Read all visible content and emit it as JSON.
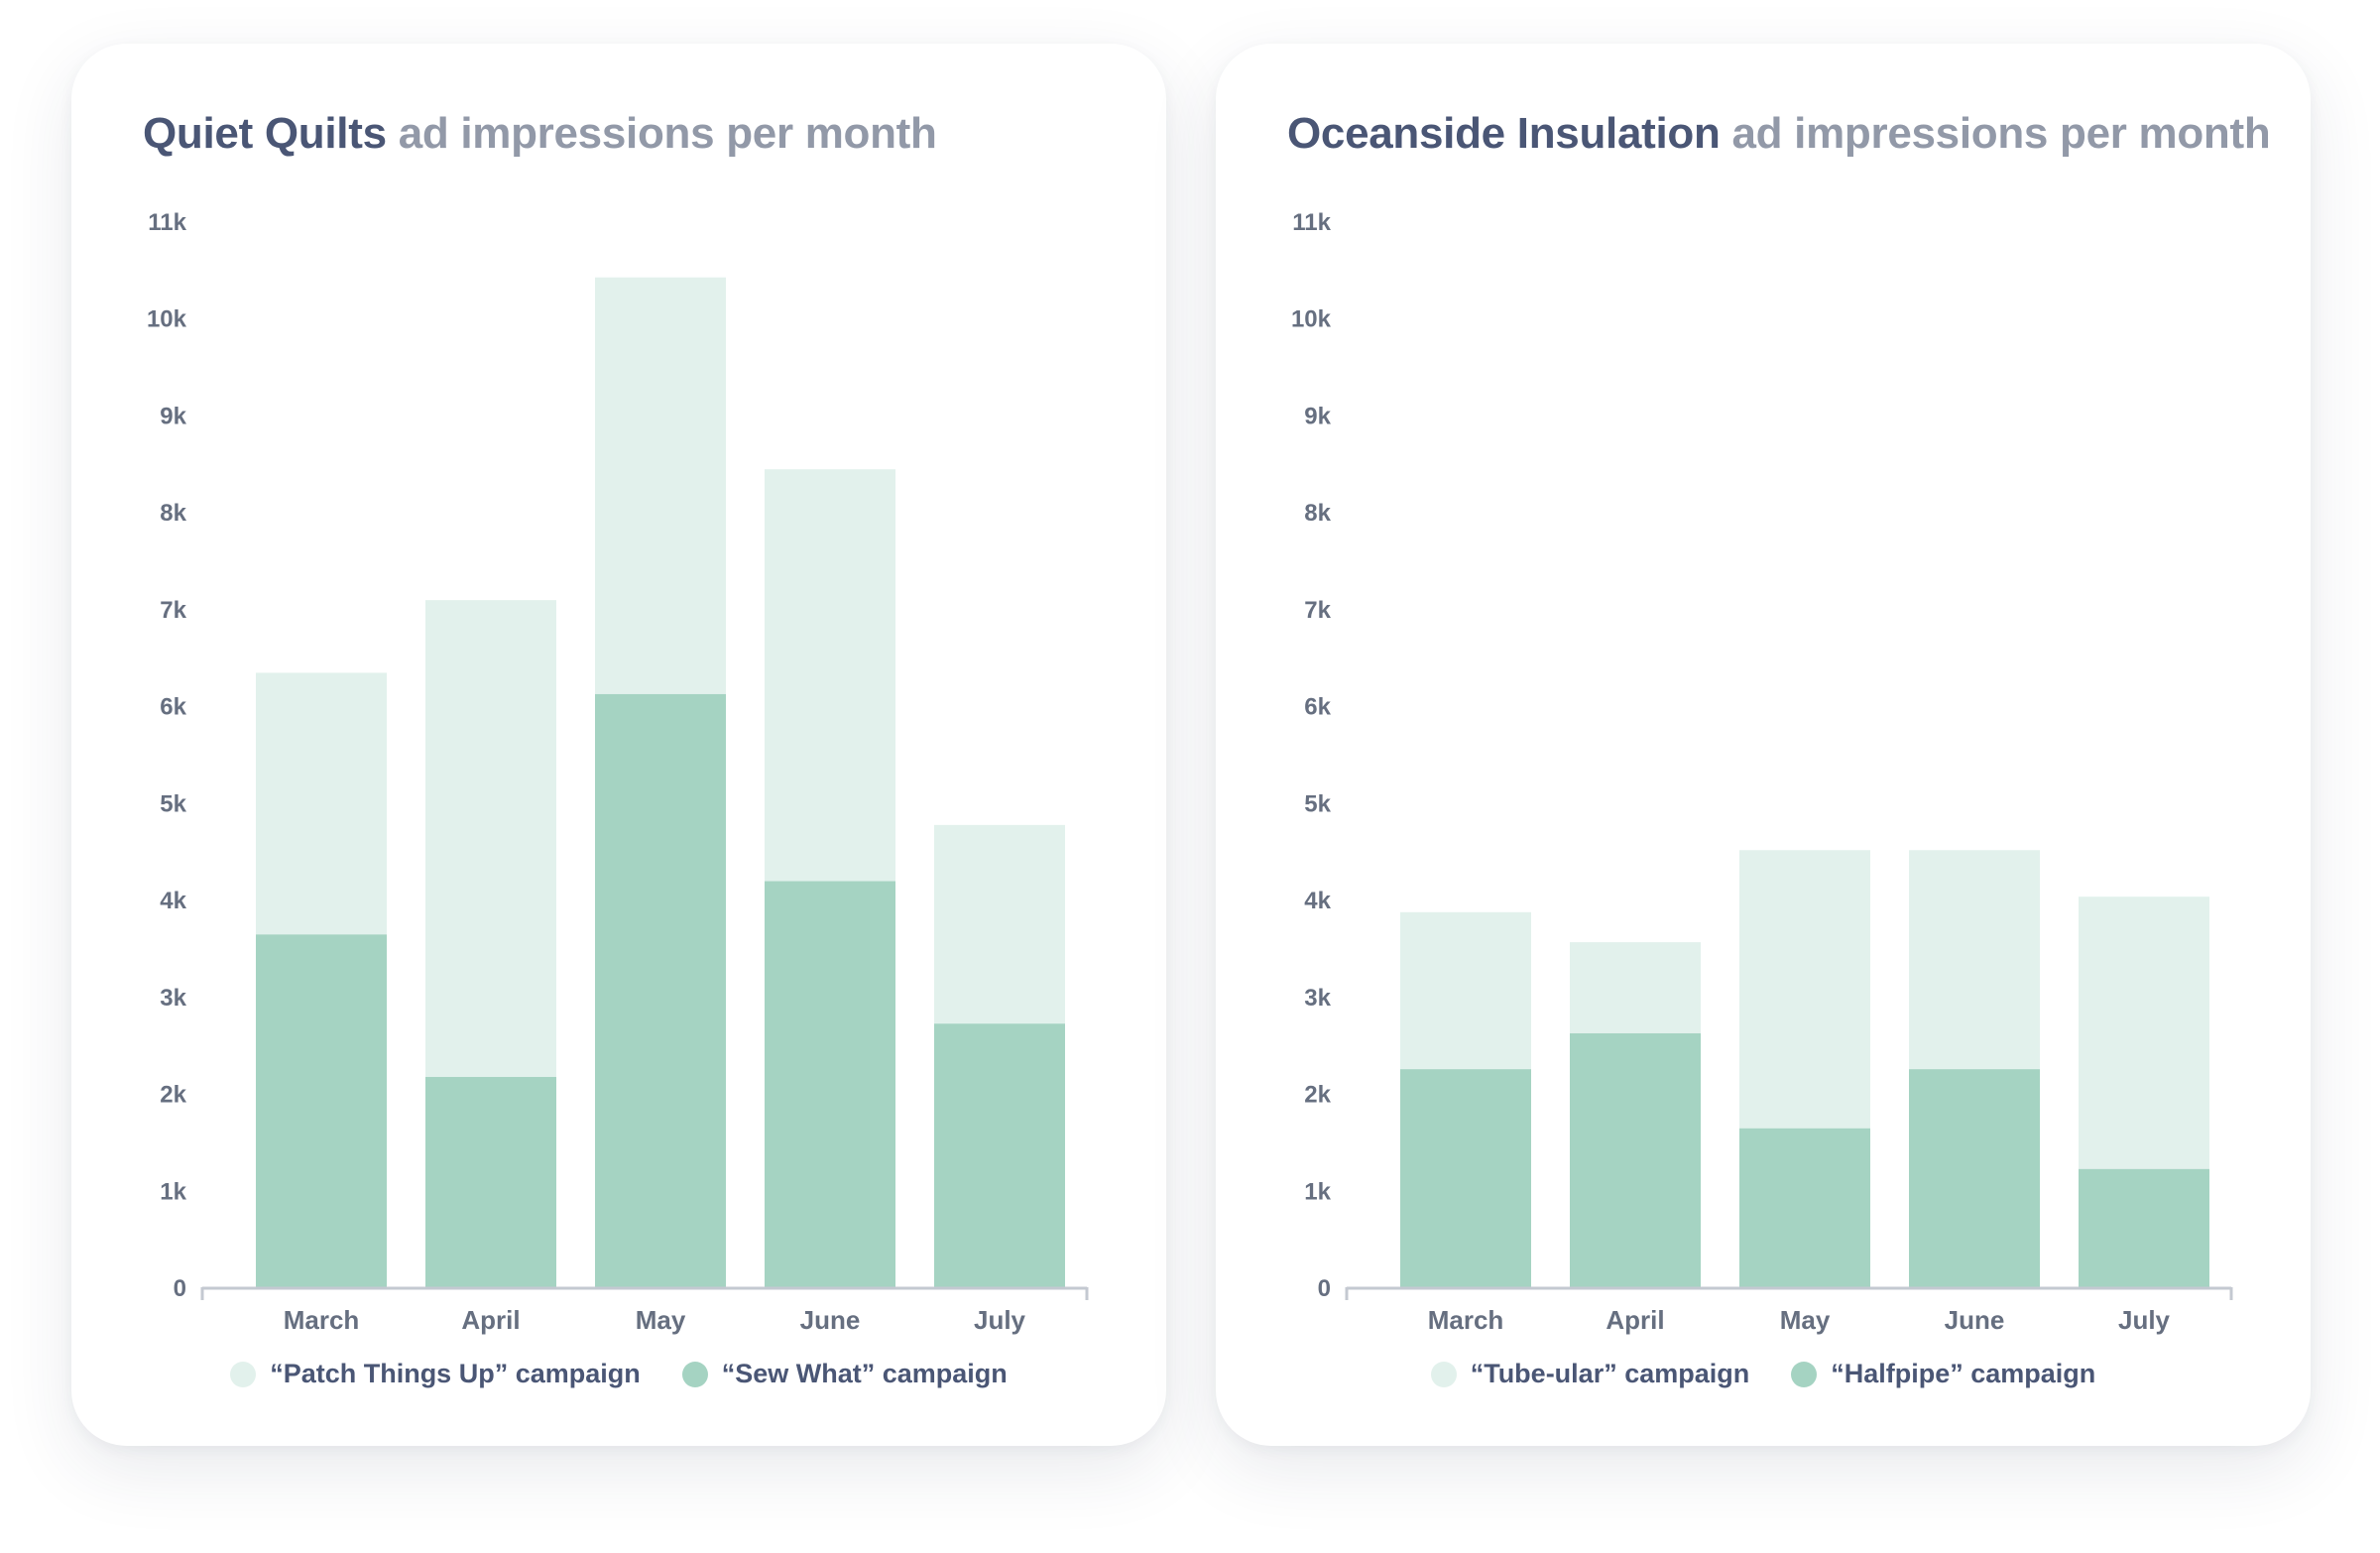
{
  "colors": {
    "light": "#e2f1ec",
    "dark": "#a5d3c2",
    "axis": "#c4c9d1"
  },
  "chart_data": [
    {
      "type": "bar",
      "stacked": true,
      "title": {
        "brand": "Quiet Quilts",
        "rest": "ad impressions per month"
      },
      "categories": [
        "March",
        "April",
        "May",
        "June",
        "July"
      ],
      "ylim": [
        0,
        11000
      ],
      "yticks": [
        0,
        1000,
        2000,
        3000,
        4000,
        5000,
        6000,
        7000,
        8000,
        9000,
        10000,
        11000
      ],
      "ytick_labels": [
        "0",
        "1k",
        "2k",
        "3k",
        "4k",
        "5k",
        "6k",
        "7k",
        "8k",
        "9k",
        "10k",
        "11k"
      ],
      "grid": false,
      "legend_position": "bottom",
      "series": [
        {
          "name": "“Sew What” campaign",
          "values": [
            3650,
            2180,
            6130,
            4200,
            2730
          ]
        },
        {
          "name": "“Patch Things Up” campaign",
          "values": [
            2700,
            4920,
            4300,
            4250,
            2050
          ]
        }
      ]
    },
    {
      "type": "bar",
      "stacked": true,
      "title": {
        "brand": "Oceanside Insulation",
        "rest": "ad impressions per month"
      },
      "categories": [
        "March",
        "April",
        "May",
        "June",
        "July"
      ],
      "ylim": [
        0,
        11000
      ],
      "yticks": [
        0,
        1000,
        2000,
        3000,
        4000,
        5000,
        6000,
        7000,
        8000,
        9000,
        10000,
        11000
      ],
      "ytick_labels": [
        "0",
        "1k",
        "2k",
        "3k",
        "4k",
        "5k",
        "6k",
        "7k",
        "8k",
        "9k",
        "10k",
        "11k"
      ],
      "grid": false,
      "legend_position": "bottom",
      "series": [
        {
          "name": "“Halfpipe” campaign",
          "values": [
            2260,
            2630,
            1650,
            2260,
            1230
          ]
        },
        {
          "name": "“Tube-ular” campaign",
          "values": [
            1620,
            940,
            2870,
            2260,
            2810
          ]
        }
      ]
    }
  ]
}
